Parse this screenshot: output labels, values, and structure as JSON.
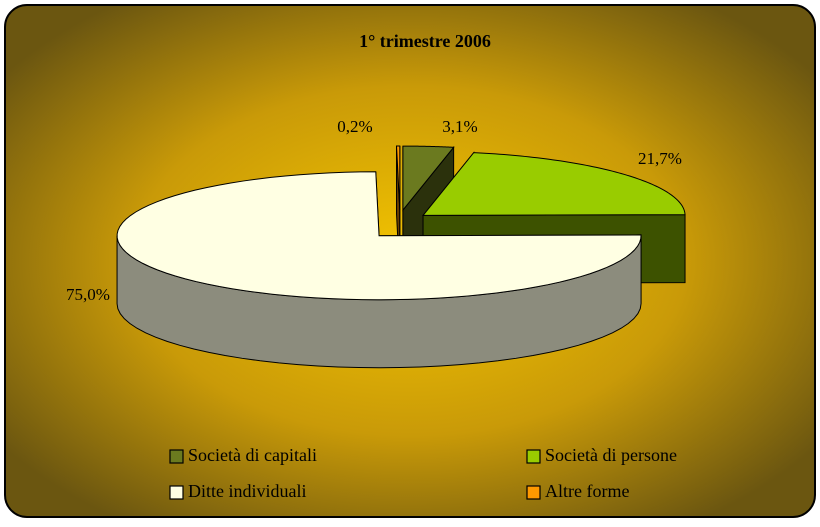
{
  "chart_data": {
    "type": "pie",
    "title": "1° trimestre 2006",
    "categories": [
      "Società di capitali",
      "Società di persone",
      "Ditte individuali",
      "Altre forme"
    ],
    "values": [
      3.1,
      21.7,
      75.0,
      0.2
    ],
    "value_labels": [
      "3,1%",
      "21,7%",
      "75,0%",
      "0,2%"
    ],
    "colors": [
      "#6b7a1f",
      "#99cc00",
      "#ffffe3",
      "#ff9900"
    ]
  }
}
